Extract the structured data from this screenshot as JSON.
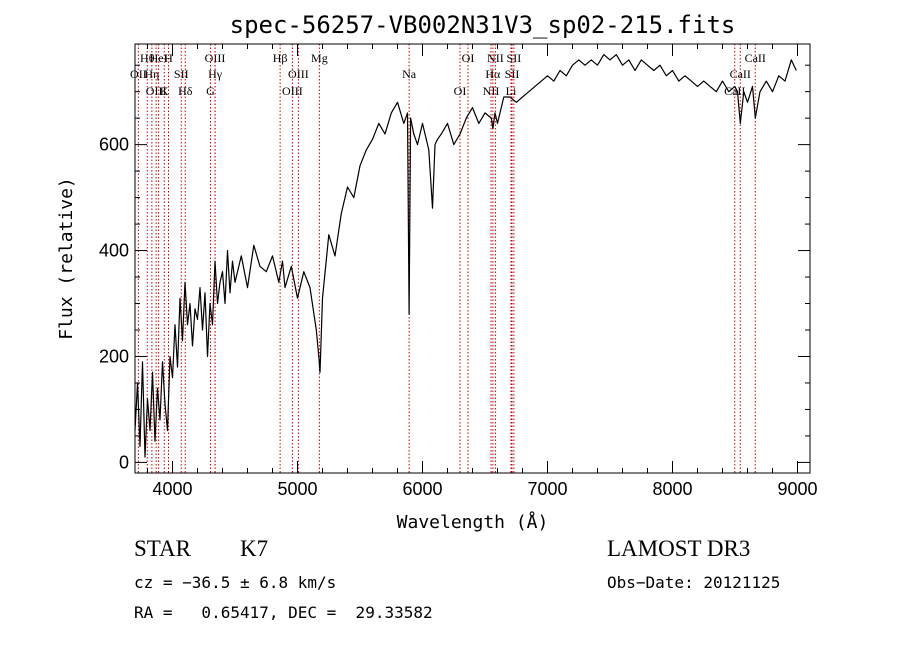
{
  "chart_data": {
    "type": "line",
    "title": "spec-56257-VB002N31V3_sp02-215.fits",
    "xlabel": "Wavelength (Å)",
    "ylabel": "Flux (relative)",
    "xlim": [
      3700,
      9100
    ],
    "ylim": [
      -20,
      790
    ],
    "xticks": [
      4000,
      5000,
      6000,
      7000,
      8000,
      9000
    ],
    "yticks": [
      0,
      200,
      400,
      600
    ],
    "series": [
      {
        "name": "flux",
        "x": [
          3700,
          3720,
          3740,
          3760,
          3780,
          3800,
          3820,
          3840,
          3860,
          3880,
          3900,
          3920,
          3940,
          3960,
          3980,
          4000,
          4020,
          4040,
          4060,
          4080,
          4100,
          4120,
          4140,
          4160,
          4180,
          4200,
          4220,
          4240,
          4260,
          4280,
          4300,
          4320,
          4340,
          4360,
          4380,
          4400,
          4420,
          4440,
          4460,
          4480,
          4500,
          4550,
          4600,
          4650,
          4700,
          4750,
          4800,
          4850,
          4880,
          4900,
          4950,
          5000,
          5050,
          5100,
          5150,
          5170,
          5180,
          5200,
          5250,
          5300,
          5350,
          5400,
          5450,
          5500,
          5550,
          5600,
          5650,
          5700,
          5750,
          5800,
          5850,
          5880,
          5893,
          5905,
          5930,
          5960,
          6000,
          6050,
          6080,
          6100,
          6120,
          6150,
          6200,
          6250,
          6300,
          6350,
          6400,
          6450,
          6500,
          6550,
          6563,
          6580,
          6600,
          6650,
          6700,
          6750,
          6800,
          6850,
          6900,
          6950,
          7000,
          7050,
          7100,
          7150,
          7200,
          7250,
          7300,
          7350,
          7400,
          7450,
          7500,
          7550,
          7600,
          7650,
          7700,
          7750,
          7800,
          7850,
          7900,
          7950,
          8000,
          8050,
          8100,
          8150,
          8200,
          8250,
          8300,
          8350,
          8400,
          8450,
          8498,
          8520,
          8542,
          8570,
          8600,
          8640,
          8662,
          8700,
          8750,
          8800,
          8850,
          8900,
          8950,
          8990
        ],
        "y": [
          60,
          150,
          30,
          190,
          10,
          120,
          60,
          170,
          40,
          140,
          80,
          190,
          110,
          60,
          200,
          160,
          260,
          180,
          310,
          230,
          340,
          260,
          300,
          220,
          290,
          270,
          330,
          250,
          320,
          200,
          300,
          260,
          380,
          300,
          340,
          360,
          300,
          400,
          320,
          380,
          340,
          390,
          330,
          410,
          370,
          360,
          390,
          340,
          380,
          330,
          370,
          310,
          360,
          330,
          250,
          200,
          170,
          310,
          430,
          390,
          470,
          520,
          500,
          560,
          590,
          610,
          640,
          620,
          660,
          680,
          640,
          660,
          280,
          650,
          620,
          600,
          640,
          590,
          480,
          600,
          610,
          620,
          640,
          600,
          620,
          650,
          670,
          640,
          660,
          650,
          630,
          660,
          640,
          690,
          690,
          680,
          690,
          700,
          710,
          720,
          730,
          720,
          740,
          730,
          750,
          760,
          750,
          760,
          750,
          770,
          760,
          770,
          750,
          760,
          740,
          760,
          750,
          740,
          750,
          730,
          740,
          720,
          730,
          720,
          710,
          720,
          710,
          700,
          720,
          700,
          710,
          700,
          640,
          700,
          680,
          710,
          650,
          700,
          720,
          700,
          730,
          720,
          760,
          740
        ]
      }
    ],
    "lines": [
      {
        "label": "Hθ",
        "x": 3798
      },
      {
        "label": "OII",
        "x": 3727
      },
      {
        "label": "OIII",
        "x": 3869
      },
      {
        "label": "HeI",
        "x": 3889
      },
      {
        "label": "Hη",
        "x": 3835
      },
      {
        "label": "K",
        "x": 3934
      },
      {
        "label": "H",
        "x": 3968
      },
      {
        "label": "SII",
        "x": 4070
      },
      {
        "label": "Hδ",
        "x": 4102
      },
      {
        "label": "OIII",
        "x": 4340
      },
      {
        "label": "Hγ",
        "x": 4341
      },
      {
        "label": "G",
        "x": 4304
      },
      {
        "label": "Hβ",
        "x": 4861
      },
      {
        "label": "OIII",
        "x": 5007
      },
      {
        "label": "OIII",
        "x": 4959
      },
      {
        "label": "Mg",
        "x": 5175
      },
      {
        "label": "Na",
        "x": 5893
      },
      {
        "label": "OI",
        "x": 6300
      },
      {
        "label": "OI",
        "x": 6364
      },
      {
        "label": "Hα",
        "x": 6563
      },
      {
        "label": "NII",
        "x": 6548
      },
      {
        "label": "NII",
        "x": 6583
      },
      {
        "label": "SII",
        "x": 6716
      },
      {
        "label": "Li",
        "x": 6708
      },
      {
        "label": "SII",
        "x": 6731
      },
      {
        "label": "CaII",
        "x": 8542
      },
      {
        "label": "CaII",
        "x": 8498
      },
      {
        "label": "CaII",
        "x": 8662
      }
    ]
  },
  "info": {
    "object_class": "STAR",
    "subclass": "K7",
    "survey": "LAMOST DR3",
    "cz": "cz = −36.5 ± 6.8 km/s",
    "obs_date": "Obs−Date: 20121125",
    "coords": "RA =   0.65417, DEC =  29.33582"
  },
  "colors": {
    "spectrum": "#000000",
    "line_marker": "#cc0000",
    "axis": "#000000"
  }
}
